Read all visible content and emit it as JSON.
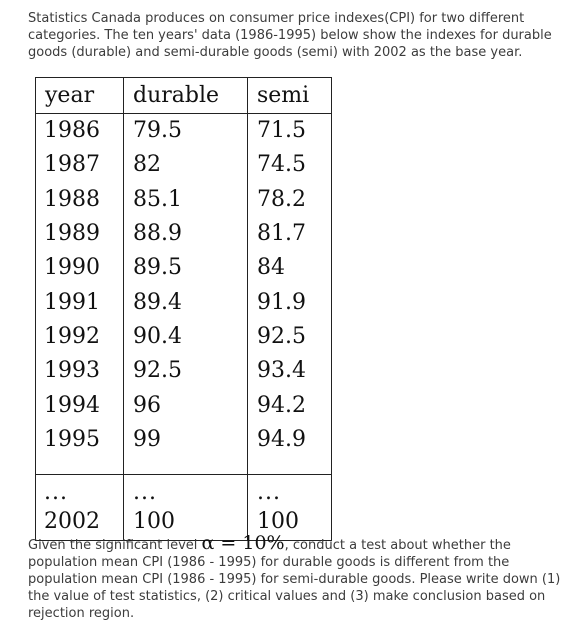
{
  "intro": "Statistics Canada produces on consumer price indexes(CPI) for two different categories. The ten years' data (1986-1995) below show the indexes for durable goods (durable) and semi-durable goods (semi) with 2002 as the base year.",
  "table": {
    "headers": {
      "year": "year",
      "durable": "durable",
      "semi": "semi"
    },
    "rows": [
      {
        "year": "1986",
        "durable": "79.5",
        "semi": "71.5"
      },
      {
        "year": "1987",
        "durable": "82",
        "semi": "74.5"
      },
      {
        "year": "1988",
        "durable": "85.1",
        "semi": "78.2"
      },
      {
        "year": "1989",
        "durable": "88.9",
        "semi": "81.7"
      },
      {
        "year": "1990",
        "durable": "89.5",
        "semi": "84"
      },
      {
        "year": "1991",
        "durable": "89.4",
        "semi": "91.9"
      },
      {
        "year": "1992",
        "durable": "90.4",
        "semi": "92.5"
      },
      {
        "year": "1993",
        "durable": "92.5",
        "semi": "93.4"
      },
      {
        "year": "1994",
        "durable": "96",
        "semi": "94.2"
      },
      {
        "year": "1995",
        "durable": "99",
        "semi": "94.9"
      }
    ],
    "ellipsis": "...",
    "base_row": {
      "year": "2002",
      "durable": "100",
      "semi": "100"
    }
  },
  "question": {
    "before": "Given the significant level",
    "alpha": "α = 10%",
    "after": ", conduct a test about whether the population mean CPI (1986 - 1995) for durable goods is different from the population mean CPI (1986 - 1995) for semi-durable goods. Please write down (1) the value of test statistics, (2) critical values and (3) make conclusion based on rejection region."
  }
}
